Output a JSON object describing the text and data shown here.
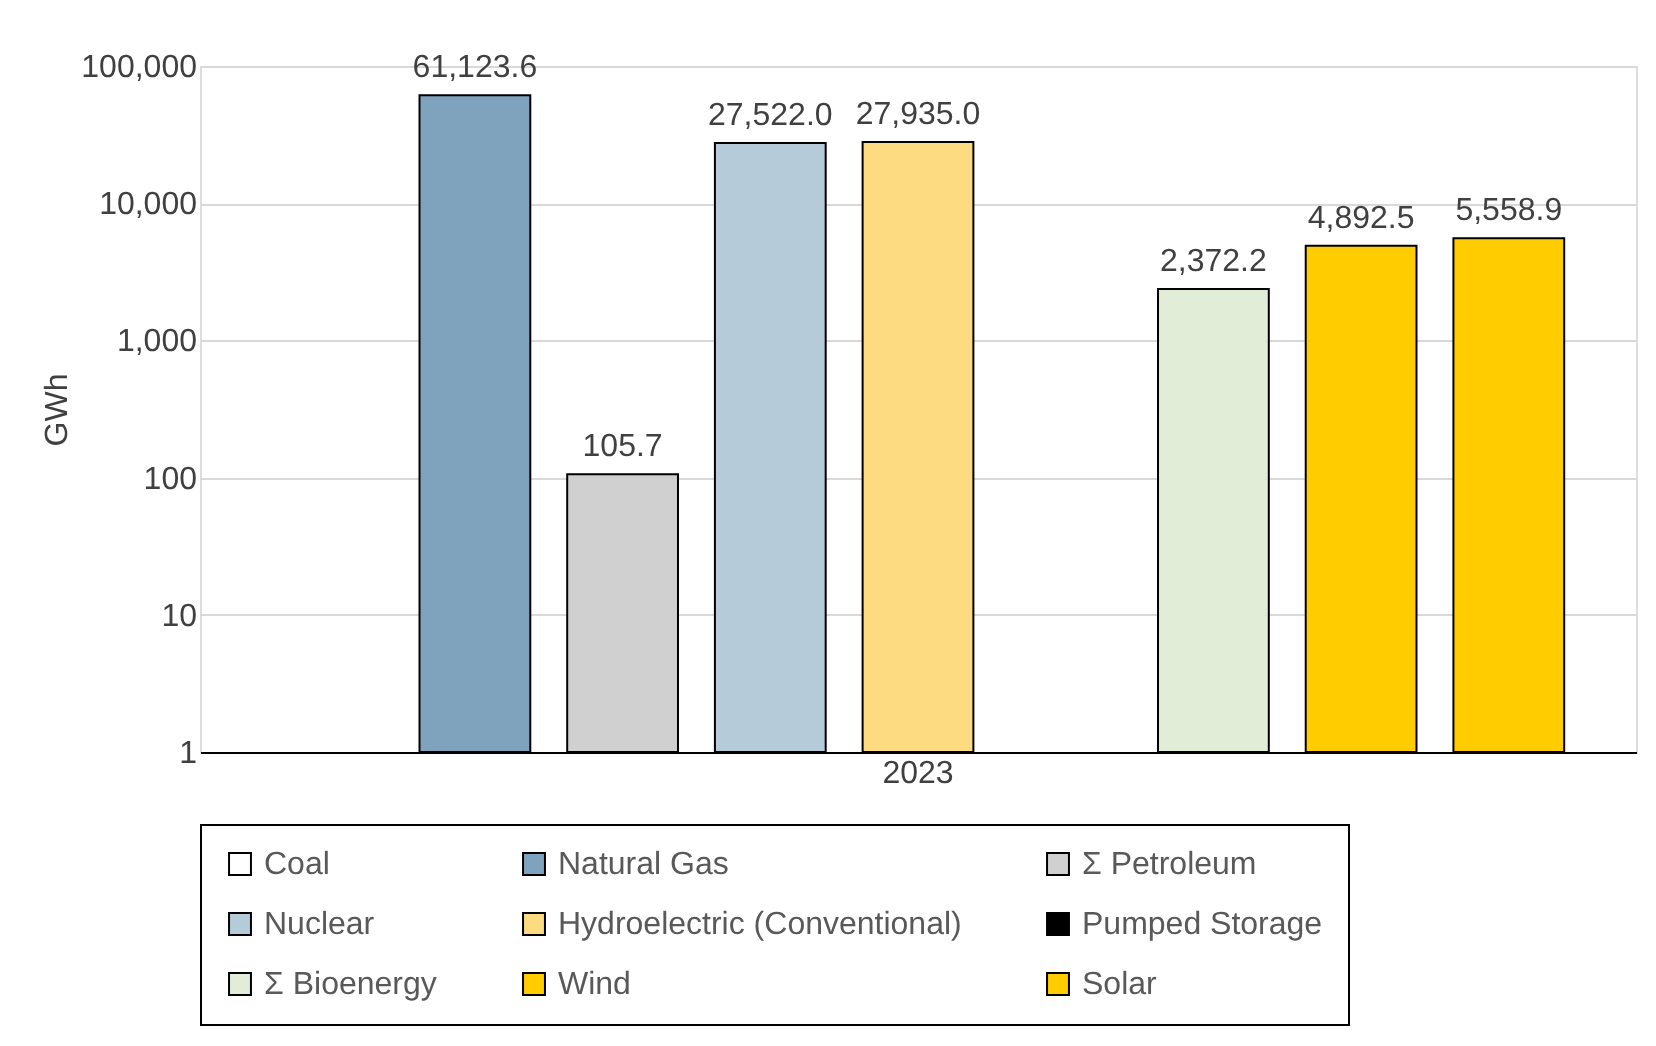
{
  "chart_data": {
    "type": "bar",
    "ylabel": "GWh",
    "categories": [
      "2023"
    ],
    "log": "y",
    "ylim": [
      1,
      100000
    ],
    "yticks": [
      {
        "value": 1,
        "label": "1"
      },
      {
        "value": 10,
        "label": "10"
      },
      {
        "value": 100,
        "label": "100"
      },
      {
        "value": 1000,
        "label": "1,000"
      },
      {
        "value": 10000,
        "label": "10,000"
      },
      {
        "value": 100000,
        "label": "100,000"
      }
    ],
    "grid": "y",
    "legend": "bottom",
    "series": [
      {
        "name": "Coal",
        "color": "#ffffff",
        "values": [
          null
        ],
        "value_labels": [
          null
        ]
      },
      {
        "name": "Natural Gas",
        "color": "#7fa3bd",
        "values": [
          61123.6
        ],
        "value_labels": [
          "61,123.6"
        ]
      },
      {
        "name": "Σ Petroleum",
        "color": "#d0d0d0",
        "values": [
          105.7
        ],
        "value_labels": [
          "105.7"
        ]
      },
      {
        "name": "Nuclear",
        "color": "#b6cbda",
        "values": [
          27522.0
        ],
        "value_labels": [
          "27,522.0"
        ]
      },
      {
        "name": "Hydroelectric (Conventional)",
        "color": "#fddb80",
        "values": [
          27935.0
        ],
        "value_labels": [
          "27,935.0"
        ]
      },
      {
        "name": "Pumped Storage",
        "color": "#000000",
        "values": [
          null
        ],
        "value_labels": [
          null
        ]
      },
      {
        "name": "Σ Bioenergy",
        "color": "#e2edd8",
        "values": [
          2372.2
        ],
        "value_labels": [
          "2,372.2"
        ]
      },
      {
        "name": "Wind",
        "color": "#ffcc00",
        "values": [
          4892.5
        ],
        "value_labels": [
          "4,892.5"
        ]
      },
      {
        "name": "Solar",
        "color": "#ffcc00",
        "values": [
          5558.9
        ],
        "value_labels": [
          "5,558.9"
        ]
      }
    ]
  }
}
